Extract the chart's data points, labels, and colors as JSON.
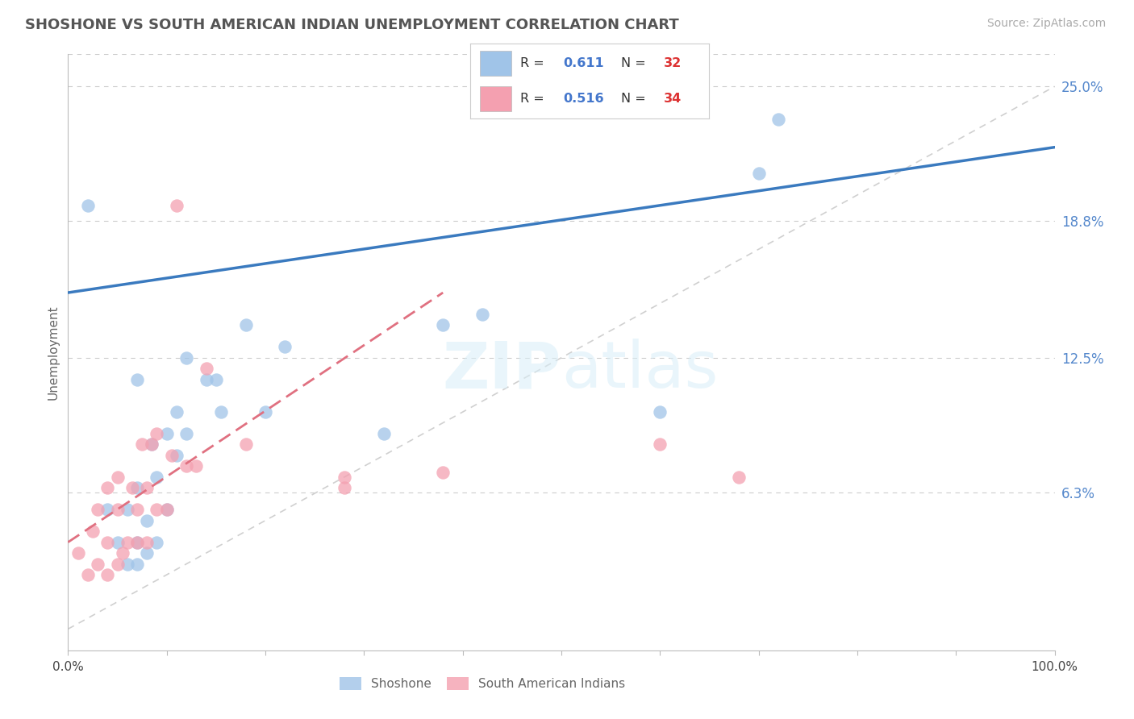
{
  "title": "SHOSHONE VS SOUTH AMERICAN INDIAN UNEMPLOYMENT CORRELATION CHART",
  "source_text": "Source: ZipAtlas.com",
  "ylabel": "Unemployment",
  "xlim": [
    0,
    1.0
  ],
  "ylim": [
    -0.01,
    0.265
  ],
  "yticks": [
    0.063,
    0.125,
    0.188,
    0.25
  ],
  "ytick_labels": [
    "6.3%",
    "12.5%",
    "18.8%",
    "25.0%"
  ],
  "xticks": [
    0.0,
    0.1,
    0.2,
    0.3,
    0.4,
    0.5,
    0.6,
    0.7,
    0.8,
    0.9,
    1.0
  ],
  "xtick_labels": [
    "0.0%",
    "",
    "",
    "",
    "",
    "",
    "",
    "",
    "",
    "",
    "100.0%"
  ],
  "shoshone_color": "#a0c4e8",
  "south_american_color": "#f4a0b0",
  "blue_line_color": "#3a7abf",
  "pink_line_color": "#e07080",
  "diagonal_color": "#d0d0d0",
  "background_color": "#ffffff",
  "grid_color": "#cccccc",
  "shoshone_x": [
    0.02,
    0.04,
    0.05,
    0.06,
    0.06,
    0.07,
    0.07,
    0.07,
    0.07,
    0.08,
    0.08,
    0.085,
    0.09,
    0.09,
    0.1,
    0.1,
    0.11,
    0.11,
    0.12,
    0.12,
    0.14,
    0.15,
    0.155,
    0.18,
    0.2,
    0.22,
    0.32,
    0.38,
    0.42,
    0.6,
    0.7,
    0.72
  ],
  "shoshone_y": [
    0.195,
    0.055,
    0.04,
    0.03,
    0.055,
    0.03,
    0.04,
    0.065,
    0.115,
    0.035,
    0.05,
    0.085,
    0.04,
    0.07,
    0.055,
    0.09,
    0.1,
    0.08,
    0.09,
    0.125,
    0.115,
    0.115,
    0.1,
    0.14,
    0.1,
    0.13,
    0.09,
    0.14,
    0.145,
    0.1,
    0.21,
    0.235
  ],
  "south_american_x": [
    0.01,
    0.02,
    0.025,
    0.03,
    0.03,
    0.04,
    0.04,
    0.04,
    0.05,
    0.05,
    0.05,
    0.055,
    0.06,
    0.065,
    0.07,
    0.07,
    0.075,
    0.08,
    0.08,
    0.085,
    0.09,
    0.09,
    0.1,
    0.105,
    0.11,
    0.12,
    0.13,
    0.14,
    0.18,
    0.28,
    0.28,
    0.38,
    0.6,
    0.68
  ],
  "south_american_y": [
    0.035,
    0.025,
    0.045,
    0.03,
    0.055,
    0.025,
    0.04,
    0.065,
    0.03,
    0.055,
    0.07,
    0.035,
    0.04,
    0.065,
    0.04,
    0.055,
    0.085,
    0.04,
    0.065,
    0.085,
    0.055,
    0.09,
    0.055,
    0.08,
    0.195,
    0.075,
    0.075,
    0.12,
    0.085,
    0.065,
    0.07,
    0.072,
    0.085,
    0.07
  ],
  "blue_line_start_y": 0.155,
  "blue_line_end_y": 0.222,
  "pink_line_start_y": 0.04,
  "pink_line_end_y": 0.155,
  "pink_line_end_x": 0.38
}
